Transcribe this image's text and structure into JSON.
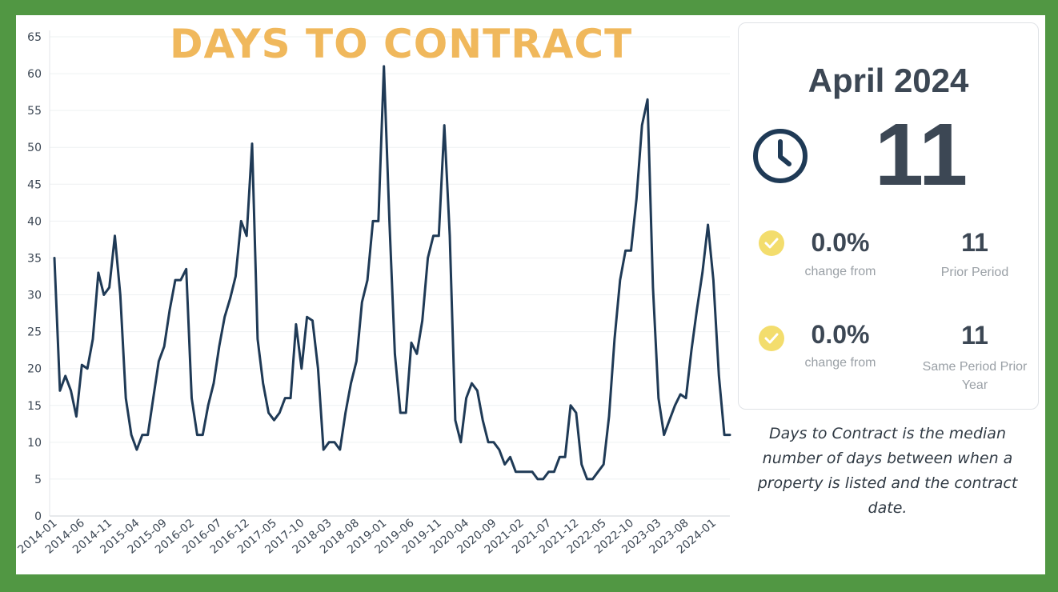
{
  "chart_data": {
    "type": "line",
    "title": "DAYS TO CONTRACT",
    "ylim": [
      0,
      65
    ],
    "yticks": [
      0,
      5,
      10,
      15,
      20,
      25,
      30,
      35,
      40,
      45,
      50,
      55,
      60,
      65
    ],
    "xtick_labels": [
      "2014-01",
      "2014-06",
      "2014-11",
      "2015-04",
      "2015-09",
      "2016-02",
      "2016-07",
      "2016-12",
      "2017-05",
      "2017-10",
      "2018-03",
      "2018-08",
      "2019-01",
      "2019-06",
      "2019-11",
      "2020-04",
      "2020-09",
      "2021-02",
      "2021-07",
      "2021-12",
      "2022-05",
      "2022-10",
      "2023-03",
      "2023-08",
      "2024-01"
    ],
    "x_start": "2014-01",
    "x_end": "2024-04",
    "grid": true,
    "series": [
      {
        "values": [
          35,
          17,
          19,
          17,
          13.5,
          20.5,
          20,
          24,
          33,
          30,
          31,
          38,
          30,
          16,
          11,
          9,
          11,
          11,
          16,
          21,
          23,
          28,
          32,
          32,
          33.5,
          16,
          11,
          11,
          15,
          18,
          23,
          27,
          29.5,
          32.5,
          40,
          38,
          50.5,
          24,
          18,
          14,
          13,
          14,
          16,
          16,
          26,
          20,
          27,
          26.5,
          20,
          9,
          10,
          10,
          9,
          14,
          18,
          21,
          29,
          32,
          40,
          40,
          61,
          40,
          22,
          14,
          14,
          23.5,
          22,
          26.5,
          35,
          38,
          38,
          53,
          38,
          13,
          10,
          16,
          18,
          17,
          13,
          10,
          10,
          9,
          7,
          8,
          6,
          6,
          6,
          6,
          5,
          5,
          6,
          6,
          8,
          8,
          15,
          14,
          7,
          5,
          5,
          6,
          7,
          13.5,
          24,
          32,
          36,
          36,
          43,
          53,
          56.5,
          31,
          16,
          11,
          13,
          15,
          16.5,
          16,
          22.5,
          28,
          33,
          39.5,
          32,
          19,
          11,
          11
        ]
      }
    ],
    "line_color": "#1f3a56"
  },
  "card": {
    "month": "April 2024",
    "value": "11",
    "rows": [
      {
        "pct": "0.0%",
        "pct_label": "change from",
        "value": "11",
        "value_label": "Prior Period"
      },
      {
        "pct": "0.0%",
        "pct_label": "change from",
        "value": "11",
        "value_label": "Same Period Prior Year"
      }
    ],
    "icons": [
      "clock-icon",
      "check-circle-icon"
    ],
    "accent_check": "#f3dd6d",
    "text_color": "#3c4754"
  },
  "description": "Days to Contract is the median number of days between when a property is listed and the contract date.",
  "colors": {
    "frame": "#519743",
    "title": "#f0b85c"
  }
}
